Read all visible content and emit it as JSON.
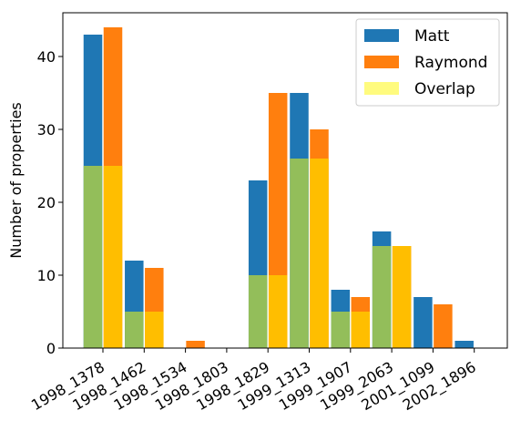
{
  "chart_data": {
    "type": "bar",
    "categories": [
      "1998_1378",
      "1998_1462",
      "1998_1534",
      "1998_1803",
      "1998_1829",
      "1999_1313",
      "1999_1907",
      "1999_2063",
      "2001_1099",
      "2002_1896"
    ],
    "series": [
      {
        "name": "Matt",
        "values": [
          43,
          12,
          0,
          0,
          23,
          35,
          8,
          16,
          7,
          1
        ]
      },
      {
        "name": "Raymond",
        "values": [
          44,
          11,
          1,
          0,
          35,
          30,
          7,
          14,
          6,
          0
        ]
      }
    ],
    "overlap": {
      "name": "Overlap",
      "values": [
        25,
        5,
        0,
        0,
        10,
        26,
        5,
        14,
        0,
        0
      ]
    },
    "title": "",
    "xlabel": "",
    "ylabel": "Number of properties",
    "ylim": [
      0,
      46
    ],
    "yticks": [
      0,
      10,
      20,
      30,
      40
    ],
    "colors": {
      "Matt": "#1f77b4",
      "Raymond": "#ff7f0e",
      "overlap_left": "#93be5a",
      "overlap_right": "#ffbe00",
      "overlap_legend": "#fffb7e"
    },
    "legend_position": "top-right",
    "grid": false
  }
}
